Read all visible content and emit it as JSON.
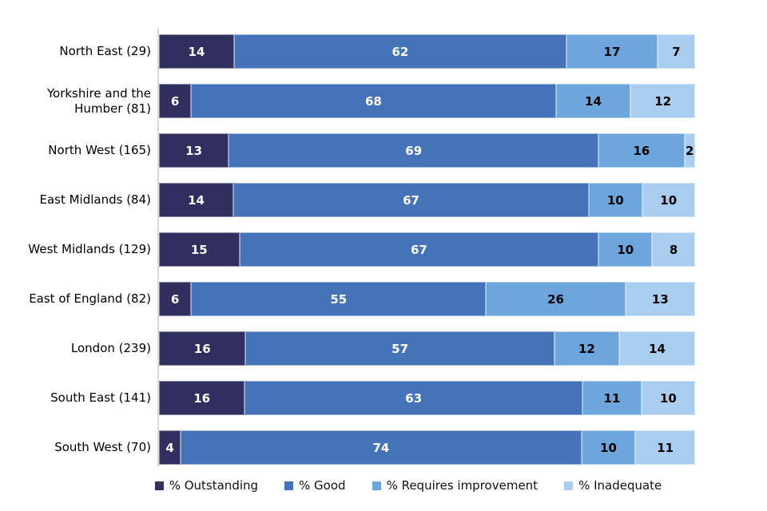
{
  "chart_data": {
    "type": "bar",
    "orientation": "horizontal-stacked",
    "title": "",
    "xlabel": "",
    "ylabel": "",
    "xlim": [
      0,
      100
    ],
    "grid": false,
    "legend_position": "bottom",
    "axis_line_color": "#d9d9d9",
    "categories": [
      "North East (29)",
      "Yorkshire and the Humber (81)",
      "North West (165)",
      "East Midlands (84)",
      "West Midlands (129)",
      "East of England (82)",
      "London (239)",
      "South East (141)",
      "South West (70)"
    ],
    "series": [
      {
        "name": "% Outstanding",
        "slug": "outstanding",
        "color": "#312e60",
        "label_color": "#ffffff",
        "values": [
          14,
          6,
          13,
          14,
          15,
          6,
          16,
          16,
          4
        ]
      },
      {
        "name": "% Good",
        "slug": "good",
        "color": "#4573b9",
        "label_color": "#ffffff",
        "values": [
          62,
          68,
          69,
          67,
          67,
          55,
          57,
          63,
          74
        ]
      },
      {
        "name": "% Requires improvement",
        "slug": "requires-improvement",
        "color": "#6ca6dc",
        "label_color": "#000000",
        "values": [
          17,
          14,
          16,
          10,
          10,
          26,
          12,
          11,
          10
        ]
      },
      {
        "name": "% Inadequate",
        "slug": "inadequate",
        "color": "#a9cdee",
        "label_color": "#000000",
        "values": [
          7,
          12,
          2,
          10,
          8,
          13,
          14,
          10,
          11
        ]
      }
    ]
  }
}
